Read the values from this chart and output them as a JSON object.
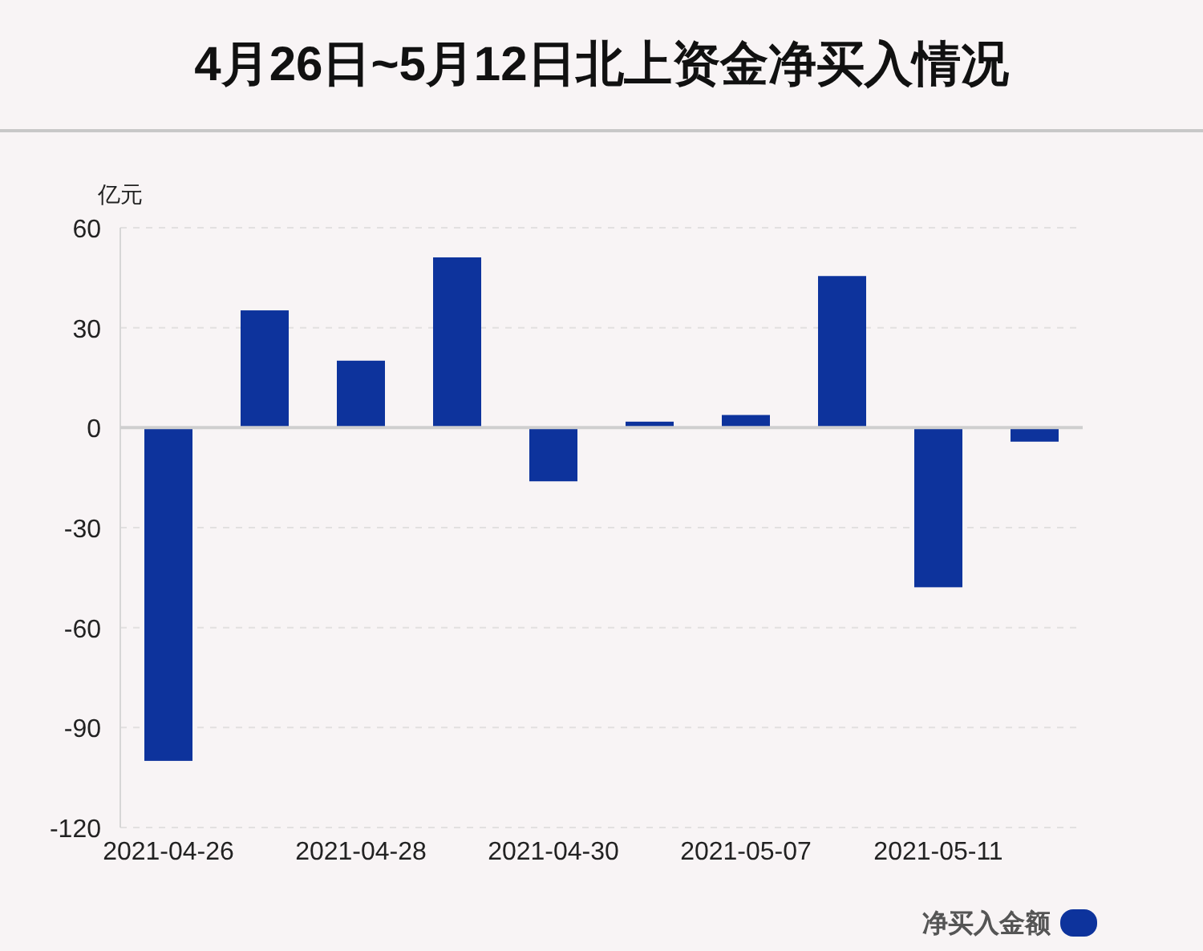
{
  "chart_data": {
    "type": "bar",
    "title": "4月26日~5月12日北上资金净买入情况",
    "ylabel": "亿元",
    "categories": [
      "2021-04-26",
      null,
      "2021-04-28",
      null,
      "2021-04-30",
      null,
      "2021-05-07",
      null,
      "2021-05-11",
      null
    ],
    "series": [
      {
        "name": "净买入金额",
        "color": "#0d339c",
        "values": [
          -100,
          35.2,
          20.1,
          51.1,
          -16.1,
          1.8,
          3.8,
          45.5,
          -47.9,
          -4.2
        ]
      }
    ],
    "ylim": [
      -120,
      60
    ],
    "yticks": [
      -120,
      -90,
      -60,
      -30,
      0,
      30,
      60
    ],
    "grid": "y",
    "legend": "bottom right"
  }
}
